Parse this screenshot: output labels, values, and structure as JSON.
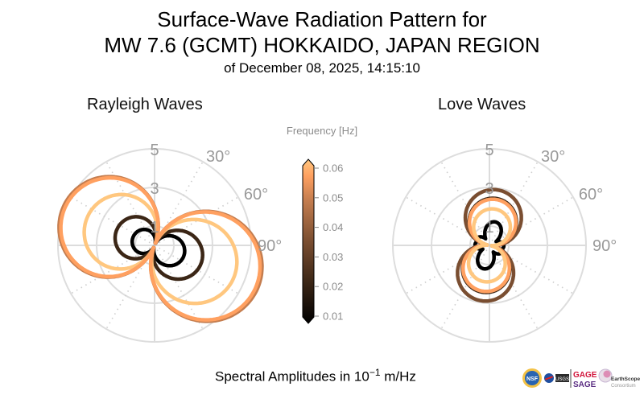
{
  "title": {
    "line1": "Surface-Wave Radiation Pattern for",
    "line2": "MW 7.6 (GCMT) HOKKAIDO, JAPAN REGION",
    "line3": "of December 08, 2025, 14:15:10"
  },
  "footer": {
    "prefix": "Spectral Amplitudes in ",
    "base": "10",
    "exponent": "−1",
    "unit": " m/Hz"
  },
  "logos": [
    "NSF",
    "NASA",
    "USGS",
    "GAGE",
    "SAGE",
    "EarthScope Consortium"
  ],
  "chart_data": [
    {
      "type": "polar-line",
      "title": "Rayleigh Waves",
      "radial_ticks": [
        1,
        3,
        5
      ],
      "angle_ticks": [
        "30°",
        "60°",
        "90°"
      ],
      "rmax": 5,
      "grid": true,
      "series": [
        {
          "frequency": 0.01,
          "color": "#000000",
          "lobes": 2,
          "amp": 1.4,
          "axis_deg": 110,
          "asym": 0.15
        },
        {
          "frequency": 0.02,
          "color": "#3b2616",
          "lobes": 2,
          "amp": 2.35,
          "axis_deg": 112,
          "asym": 0.1
        },
        {
          "frequency": 0.04,
          "color": "#ffc77f",
          "lobes": 2,
          "amp": 4.1,
          "axis_deg": 112,
          "asym": 0.08
        },
        {
          "frequency": 0.05,
          "color": "#c47d4f",
          "lobes": 2,
          "amp": 5.45,
          "axis_deg": 112,
          "asym": 0.06
        },
        {
          "frequency": 0.06,
          "color": "#ffa060",
          "lobes": 2,
          "amp": 5.35,
          "axis_deg": 112,
          "asym": 0.06
        }
      ]
    },
    {
      "type": "polar-line",
      "title": "Love Waves",
      "radial_ticks": [
        1,
        3,
        5
      ],
      "angle_ticks": [
        "30°",
        "60°",
        "90°"
      ],
      "rmax": 5,
      "grid": true,
      "series": [
        {
          "frequency": 0.01,
          "color": "#000000",
          "lobes": 4,
          "amp": 1.25,
          "axis_deg": 15,
          "asym": 0.0
        },
        {
          "frequency": 0.02,
          "color": "#3b2616",
          "lobes": 2,
          "amp": 2.45,
          "axis_deg": 8,
          "asym": 0.0
        },
        {
          "frequency": 0.03,
          "color": "#7a4e31",
          "lobes": 2,
          "amp": 2.9,
          "axis_deg": 8,
          "asym": 0.0
        },
        {
          "frequency": 0.04,
          "color": "#ffa060",
          "lobes": 2,
          "amp": 2.4,
          "axis_deg": 8,
          "asym": 0.0
        },
        {
          "frequency": 0.05,
          "color": "#ffc77f",
          "lobes": 2,
          "amp": 1.9,
          "axis_deg": 8,
          "asym": 0.0
        }
      ]
    }
  ],
  "colorbar": {
    "label": "Frequency [Hz]",
    "colormap": "copper",
    "ticks": [
      "0.06",
      "0.05",
      "0.04",
      "0.03",
      "0.02",
      "0.01"
    ],
    "range": [
      0.01,
      0.06
    ]
  }
}
